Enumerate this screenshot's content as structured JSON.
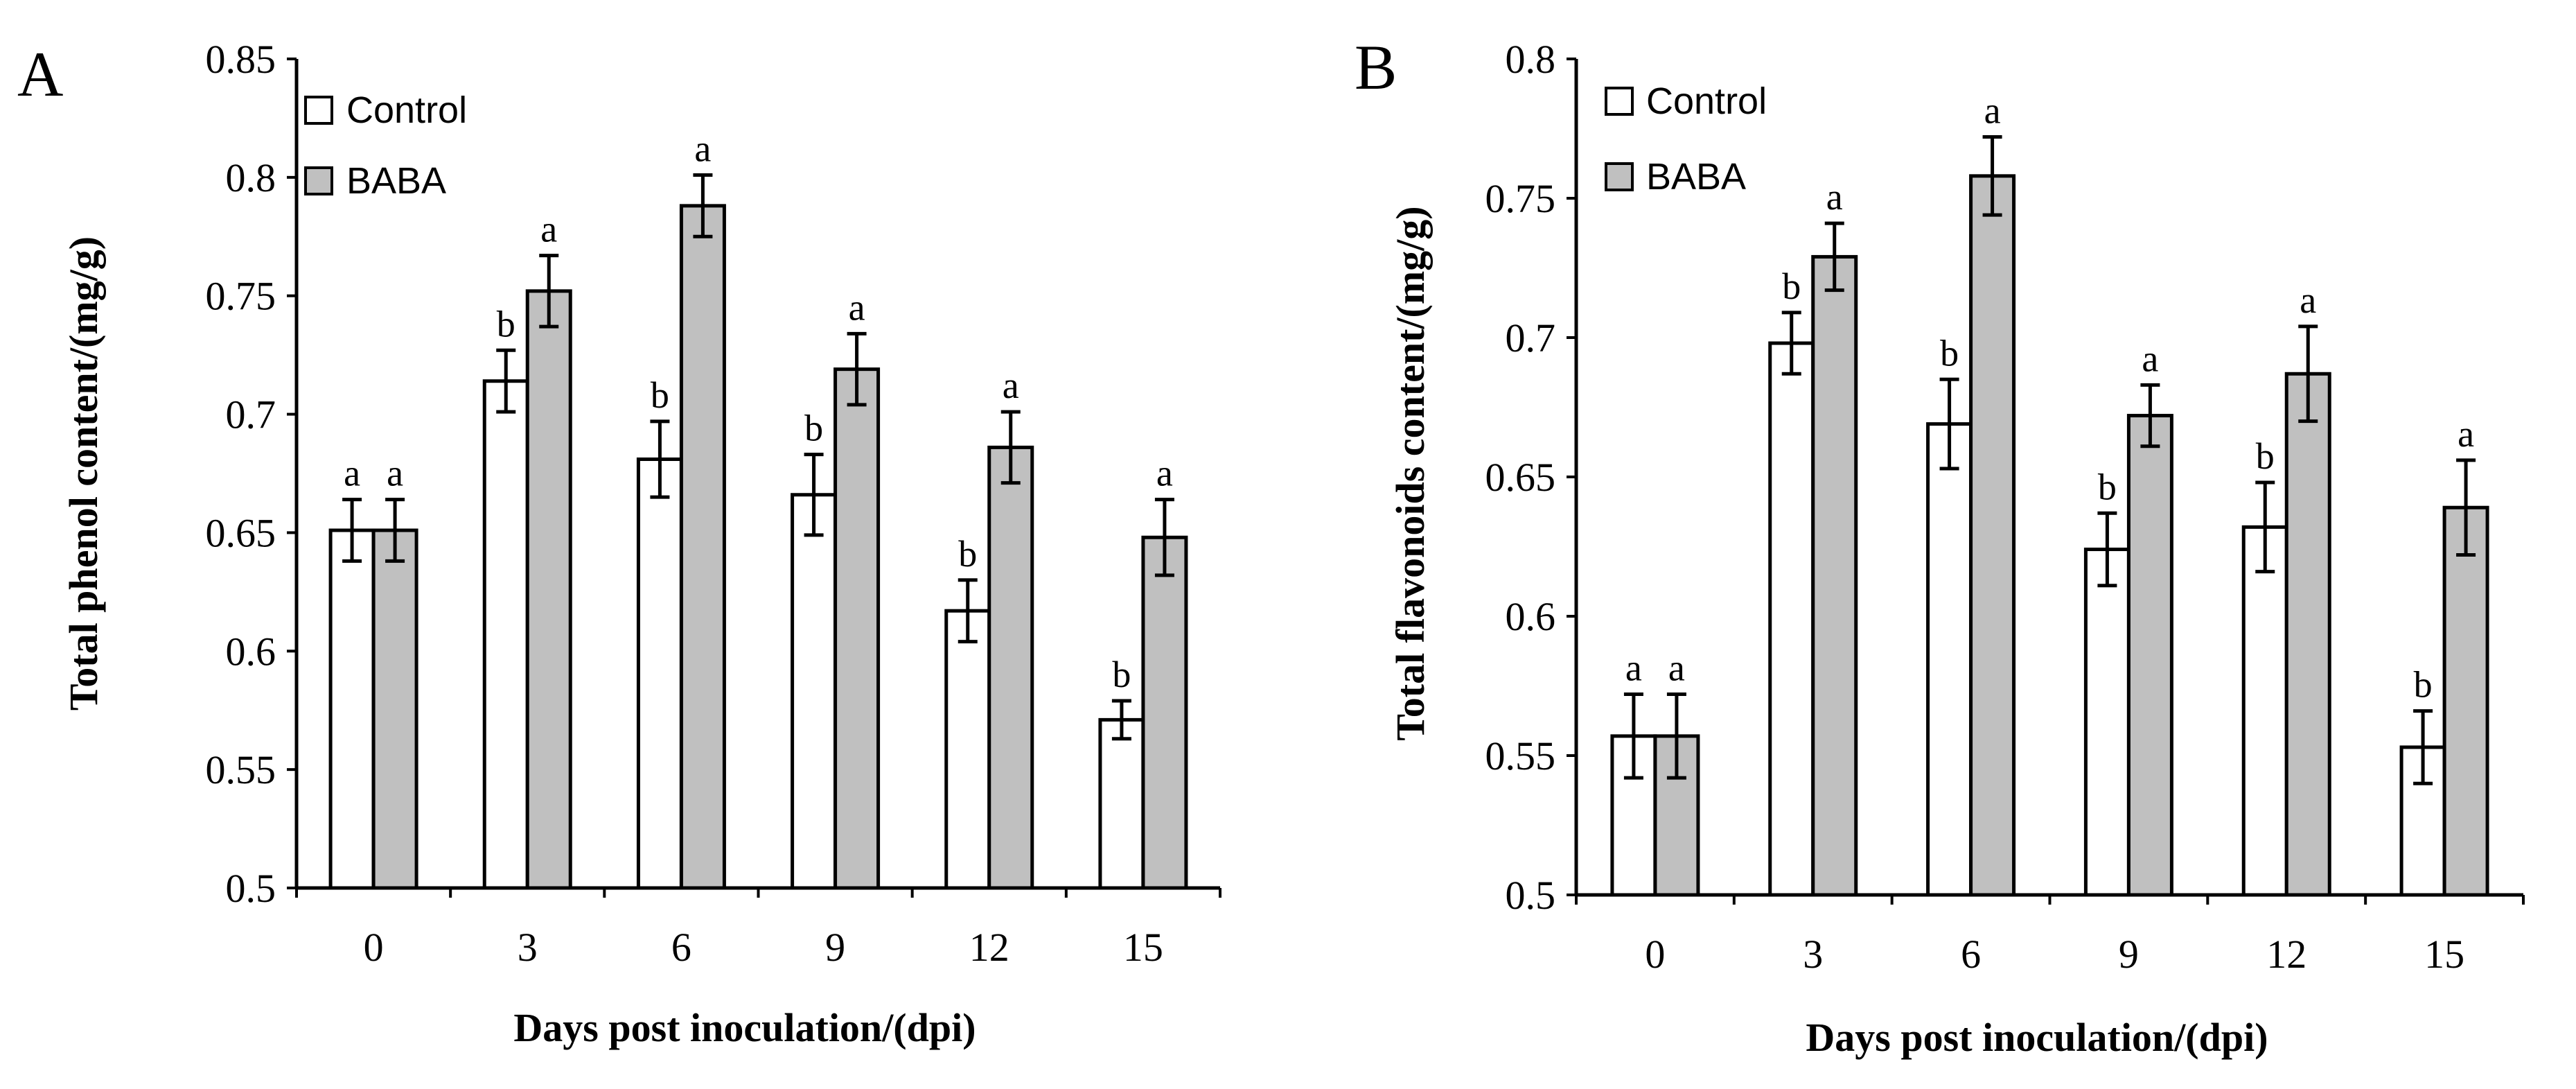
{
  "chart_data": [
    {
      "panel": "A",
      "type": "bar",
      "xlabel": "Days post inoculation/(dpi)",
      "ylabel": "Total phenol content/(mg/g)",
      "categories": [
        "0",
        "3",
        "6",
        "9",
        "12",
        "15"
      ],
      "ylim": [
        0.5,
        0.85
      ],
      "yticks": [
        "0.5",
        "0.55",
        "0.6",
        "0.65",
        "0.7",
        "0.75",
        "0.8",
        "0.85"
      ],
      "legend_position": "top-left",
      "grid": false,
      "series": [
        {
          "name": "Control",
          "color": "#ffffff",
          "values": [
            0.651,
            0.714,
            0.681,
            0.666,
            0.617,
            0.571
          ],
          "errors": [
            0.013,
            0.013,
            0.016,
            0.017,
            0.013,
            0.008
          ],
          "labels": [
            "a",
            "b",
            "b",
            "b",
            "b",
            "b"
          ]
        },
        {
          "name": "BABA",
          "color": "#c0c0c0",
          "values": [
            0.651,
            0.752,
            0.788,
            0.719,
            0.686,
            0.648
          ],
          "errors": [
            0.013,
            0.015,
            0.013,
            0.015,
            0.015,
            0.016
          ],
          "labels": [
            "a",
            "a",
            "a",
            "a",
            "a",
            "a"
          ]
        }
      ]
    },
    {
      "panel": "B",
      "type": "bar",
      "xlabel": "Days post inoculation/(dpi)",
      "ylabel": "Total flavonoids content/(mg/g)",
      "categories": [
        "0",
        "3",
        "6",
        "9",
        "12",
        "15"
      ],
      "ylim": [
        0.5,
        0.8
      ],
      "yticks": [
        "0.5",
        "0.55",
        "0.6",
        "0.65",
        "0.7",
        "0.75",
        "0.8"
      ],
      "legend_position": "top-left",
      "grid": false,
      "series": [
        {
          "name": "Control",
          "color": "#ffffff",
          "values": [
            0.557,
            0.698,
            0.669,
            0.624,
            0.632,
            0.553
          ],
          "errors": [
            0.015,
            0.011,
            0.016,
            0.013,
            0.016,
            0.013
          ],
          "labels": [
            "a",
            "b",
            "b",
            "b",
            "b",
            "b"
          ]
        },
        {
          "name": "BABA",
          "color": "#c0c0c0",
          "values": [
            0.557,
            0.729,
            0.758,
            0.672,
            0.687,
            0.639
          ],
          "errors": [
            0.015,
            0.012,
            0.014,
            0.011,
            0.017,
            0.017
          ],
          "labels": [
            "a",
            "a",
            "a",
            "a",
            "a",
            "a"
          ]
        }
      ]
    }
  ]
}
